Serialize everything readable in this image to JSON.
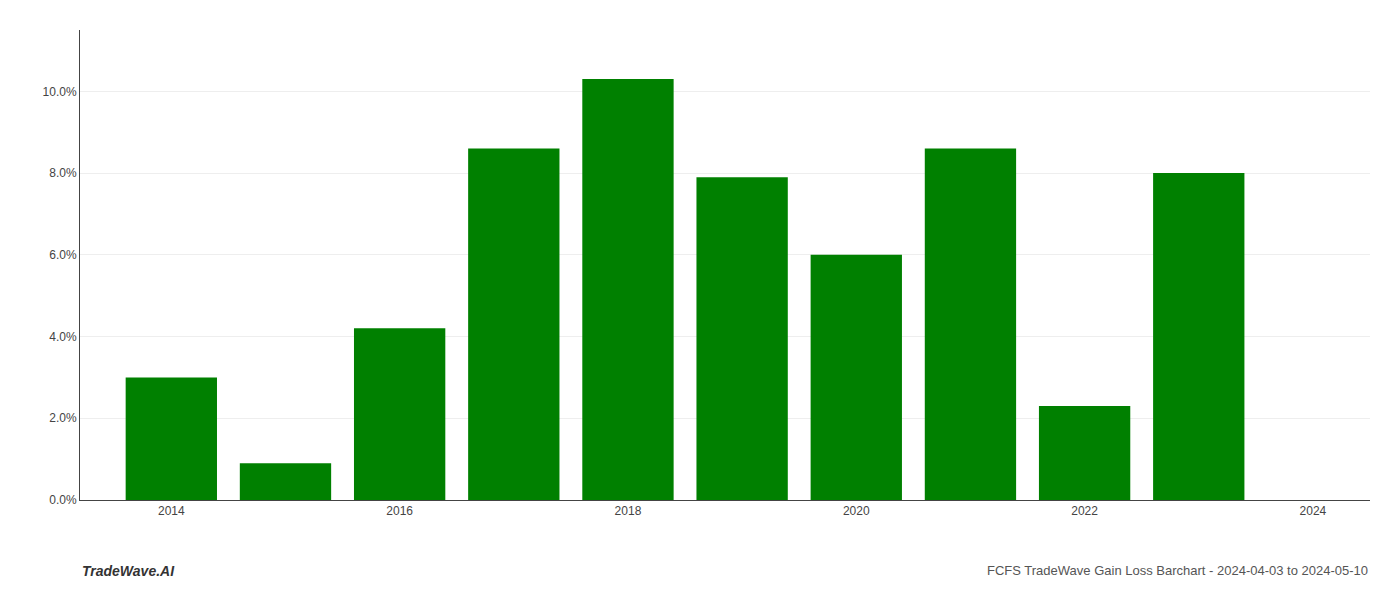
{
  "chart_data": {
    "type": "bar",
    "x": [
      2014,
      2015,
      2016,
      2017,
      2018,
      2019,
      2020,
      2021,
      2022,
      2023
    ],
    "values": [
      0.03,
      0.009,
      0.042,
      0.086,
      0.103,
      0.079,
      0.06,
      0.086,
      0.023,
      0.08
    ],
    "color": "#008000",
    "xlim": [
      2013.2,
      2024.5
    ],
    "xticks": [
      2014,
      2016,
      2018,
      2020,
      2022,
      2024
    ],
    "ylim": [
      0,
      0.115
    ],
    "yticks": [
      {
        "value": 0.0,
        "label": "0.0%"
      },
      {
        "value": 0.02,
        "label": "2.0%"
      },
      {
        "value": 0.04,
        "label": "4.0%"
      },
      {
        "value": 0.06,
        "label": "6.0%"
      },
      {
        "value": 0.08,
        "label": "8.0%"
      },
      {
        "value": 0.1,
        "label": "10.0%"
      }
    ],
    "grid": true,
    "annotations": [
      "TradeWave.AI",
      "FCFS TradeWave Gain Loss Barchart - 2024-04-03 to 2024-05-10"
    ]
  }
}
